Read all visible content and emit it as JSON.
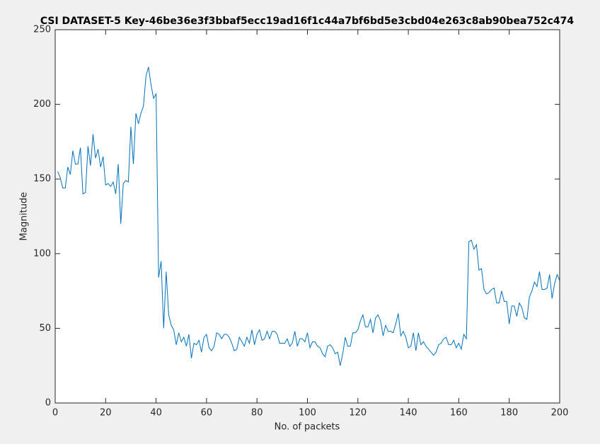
{
  "chart_data": {
    "type": "line",
    "title": "CSI DATASET-5  Key-46be36e3f3bbaf5ecc19ad16f1c44a7bf6bd5e3cbd04e263c8ab90bea752c474",
    "xlabel": "No. of packets",
    "ylabel": "Magnitude",
    "xlim": [
      0,
      200
    ],
    "ylim": [
      0,
      250
    ],
    "xticks": [
      0,
      20,
      40,
      60,
      80,
      100,
      120,
      140,
      160,
      180,
      200
    ],
    "yticks": [
      0,
      50,
      100,
      150,
      200,
      250
    ],
    "grid": false,
    "x": [
      1,
      2,
      3,
      4,
      5,
      6,
      7,
      8,
      9,
      10,
      11,
      12,
      13,
      14,
      15,
      16,
      17,
      18,
      19,
      20,
      21,
      22,
      23,
      24,
      25,
      26,
      27,
      28,
      29,
      30,
      31,
      32,
      33,
      34,
      35,
      36,
      37,
      38,
      39,
      40,
      41,
      42,
      43,
      44,
      45,
      46,
      47,
      48,
      49,
      50,
      51,
      52,
      53,
      54,
      55,
      56,
      57,
      58,
      59,
      60,
      61,
      62,
      63,
      64,
      65,
      66,
      67,
      68,
      69,
      70,
      71,
      72,
      73,
      74,
      75,
      76,
      77,
      78,
      79,
      80,
      81,
      82,
      83,
      84,
      85,
      86,
      87,
      88,
      89,
      90,
      91,
      92,
      93,
      94,
      95,
      96,
      97,
      98,
      99,
      100,
      101,
      102,
      103,
      104,
      105,
      106,
      107,
      108,
      109,
      110,
      111,
      112,
      113,
      114,
      115,
      116,
      117,
      118,
      119,
      120,
      121,
      122,
      123,
      124,
      125,
      126,
      127,
      128,
      129,
      130,
      131,
      132,
      133,
      134,
      135,
      136,
      137,
      138,
      139,
      140,
      141,
      142,
      143,
      144,
      145,
      146,
      147,
      148,
      149,
      150,
      151,
      152,
      153,
      154,
      155,
      156,
      157,
      158,
      159,
      160,
      161,
      162,
      163,
      164,
      165,
      166,
      167,
      168,
      169,
      170,
      171,
      172,
      173,
      174,
      175,
      176,
      177,
      178,
      179,
      180,
      181,
      182,
      183,
      184,
      185,
      186,
      187,
      188,
      189,
      190,
      191,
      192,
      193,
      194,
      195,
      196,
      197,
      198,
      199,
      200
    ],
    "series": [
      {
        "color": "#0072bd",
        "values": [
          155,
          151,
          144,
          144,
          158,
          153,
          169,
          160,
          160,
          171,
          140,
          141,
          172,
          159,
          180,
          164,
          170,
          158,
          165,
          146,
          147,
          145,
          148,
          140,
          160,
          120,
          147,
          149,
          148,
          185,
          160,
          194,
          187,
          194,
          199,
          219,
          225,
          213,
          204,
          207,
          84,
          95,
          50,
          88,
          59,
          52,
          49,
          39,
          47,
          41,
          44,
          38,
          46,
          30,
          40,
          39,
          42,
          34,
          44,
          46,
          37,
          35,
          38,
          47,
          46,
          43,
          46,
          46,
          44,
          40,
          35,
          36,
          44,
          41,
          38,
          44,
          40,
          49,
          39,
          46,
          49,
          42,
          43,
          48,
          43,
          48,
          48,
          46,
          40,
          40,
          40,
          43,
          38,
          40,
          48,
          38,
          43,
          43,
          41,
          47,
          37,
          41,
          41,
          38,
          37,
          33,
          31,
          38,
          39,
          37,
          33,
          34,
          25,
          33,
          44,
          38,
          38,
          47,
          47,
          49,
          55,
          59,
          51,
          51,
          56,
          47,
          57,
          59,
          55,
          45,
          52,
          48,
          48,
          47,
          53,
          60,
          45,
          48,
          44,
          37,
          38,
          47,
          35,
          47,
          39,
          41,
          38,
          36,
          34,
          32,
          34,
          39,
          40,
          43,
          44,
          39,
          39,
          42,
          37,
          40,
          36,
          46,
          43,
          108,
          109,
          103,
          106,
          89,
          90,
          76,
          73,
          74,
          76,
          77,
          67,
          67,
          75,
          68,
          68,
          53,
          65,
          65,
          58,
          67,
          64,
          57,
          56,
          71,
          75,
          81,
          78,
          88,
          76,
          76,
          77,
          86,
          70,
          80,
          86,
          82
        ]
      }
    ]
  }
}
